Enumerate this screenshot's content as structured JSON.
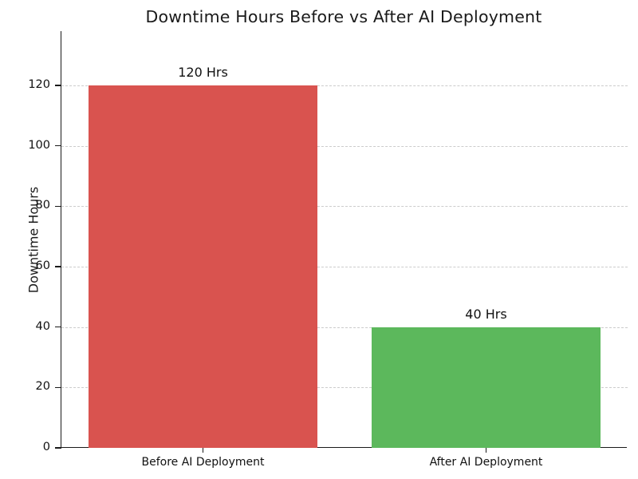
{
  "chart_data": {
    "type": "bar",
    "title": "Downtime Hours Before vs After AI Deployment",
    "xlabel": "",
    "ylabel": "Downtime Hours",
    "categories": [
      "Before AI Deployment",
      "After AI Deployment"
    ],
    "values": [
      120,
      40
    ],
    "bar_labels": [
      "120 Hrs",
      "40 Hrs"
    ],
    "bar_colors": [
      "#d9534f",
      "#5cb85c"
    ],
    "yticks": [
      0,
      20,
      40,
      60,
      80,
      100,
      120
    ],
    "ylim": [
      0,
      138
    ],
    "grid": "horizontal-dashed",
    "legend": "none"
  },
  "colors": {
    "background": "#ffffff",
    "grid": "#cccccc",
    "axis": "#1a1a1a",
    "text": "#111111",
    "bar_before": "#d9534f",
    "bar_after": "#5cb85c"
  }
}
